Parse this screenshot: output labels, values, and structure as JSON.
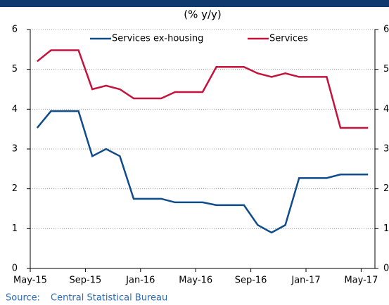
{
  "chart_data": {
    "type": "line",
    "subtitle": "(% y/y)",
    "categories": [
      "May-15",
      null,
      null,
      null,
      "Sep-15",
      null,
      null,
      null,
      "Jan-16",
      null,
      null,
      null,
      "May-16",
      null,
      null,
      null,
      "Sep-16",
      null,
      null,
      null,
      "Jan-17",
      null,
      null,
      null,
      "May-17"
    ],
    "series": [
      {
        "name": "Services ex-housing",
        "color": "#0e4c8c",
        "values": [
          3.53,
          3.95,
          3.95,
          3.95,
          2.82,
          3.0,
          2.82,
          1.75,
          1.75,
          1.75,
          1.66,
          1.66,
          1.66,
          1.59,
          1.59,
          1.59,
          1.09,
          0.9,
          1.09,
          2.27,
          2.27,
          2.27,
          2.36,
          2.36,
          2.36
        ]
      },
      {
        "name": "Services",
        "color": "#c4133c",
        "values": [
          5.2,
          5.48,
          5.48,
          5.48,
          4.5,
          4.59,
          4.5,
          4.27,
          4.27,
          4.27,
          4.43,
          4.43,
          4.43,
          5.06,
          5.06,
          5.06,
          4.9,
          4.81,
          4.9,
          4.81,
          4.81,
          4.81,
          3.53,
          3.53,
          3.53
        ]
      }
    ],
    "ylim": [
      0,
      6
    ],
    "yticks": [
      0,
      1,
      2,
      3,
      4,
      5,
      6
    ],
    "y2lim": [
      0,
      6
    ],
    "y2ticks": [
      0,
      1,
      2,
      3,
      4,
      5,
      6
    ],
    "grid": true
  },
  "source_label": "Source:",
  "source": "Central Statistical Bureau"
}
